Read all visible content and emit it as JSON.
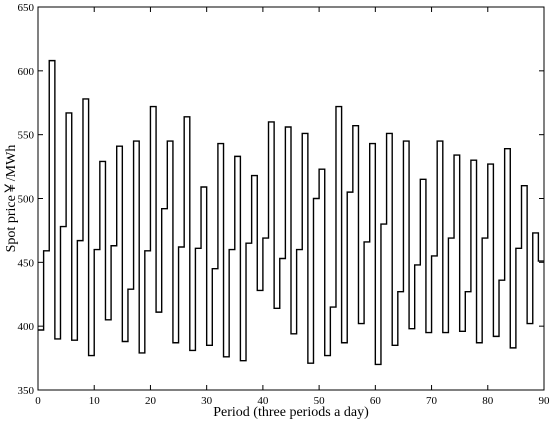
{
  "chart_data": {
    "type": "line",
    "step": true,
    "xlabel": "Period (three periods a day)",
    "ylabel": "Spot price￥/MWh",
    "xlim": [
      0,
      90
    ],
    "ylim": [
      350,
      650
    ],
    "xticks": [
      0,
      10,
      20,
      30,
      40,
      50,
      60,
      70,
      80,
      90
    ],
    "yticks": [
      350,
      400,
      450,
      500,
      550,
      600,
      650
    ],
    "grid": false,
    "series": [
      {
        "x": [
          0,
          1,
          2,
          3,
          4,
          5,
          6,
          7,
          8,
          9,
          10,
          11,
          12,
          13,
          14,
          15,
          16,
          17,
          18,
          19,
          20,
          21,
          22,
          23,
          24,
          25,
          26,
          27,
          28,
          29,
          30,
          31,
          32,
          33,
          34,
          35,
          36,
          37,
          38,
          39,
          40,
          41,
          42,
          43,
          44,
          45,
          46,
          47,
          48,
          49,
          50,
          51,
          52,
          53,
          54,
          55,
          56,
          57,
          58,
          59,
          60,
          61,
          62,
          63,
          64,
          65,
          66,
          67,
          68,
          69,
          70,
          71,
          72,
          73,
          74,
          75,
          76,
          77,
          78,
          79,
          80,
          81,
          82,
          83,
          84,
          85,
          86,
          87,
          88,
          89,
          90
        ],
        "y": [
          397,
          459,
          608,
          390,
          478,
          567,
          389,
          467,
          578,
          377,
          460,
          529,
          405,
          463,
          541,
          388,
          429,
          545,
          379,
          459,
          572,
          411,
          492,
          545,
          387,
          462,
          564,
          381,
          461,
          509,
          385,
          445,
          543,
          376,
          460,
          533,
          373,
          465,
          518,
          428,
          469,
          560,
          414,
          453,
          556,
          394,
          460,
          551,
          371,
          500,
          523,
          377,
          415,
          572,
          387,
          505,
          557,
          402,
          466,
          543,
          370,
          480,
          551,
          385,
          427,
          545,
          398,
          448,
          515,
          395,
          455,
          545,
          395,
          469,
          534,
          396,
          427,
          530,
          387,
          469,
          527,
          392,
          436,
          539,
          383,
          461,
          510,
          402,
          473,
          451,
          451
        ]
      }
    ]
  }
}
